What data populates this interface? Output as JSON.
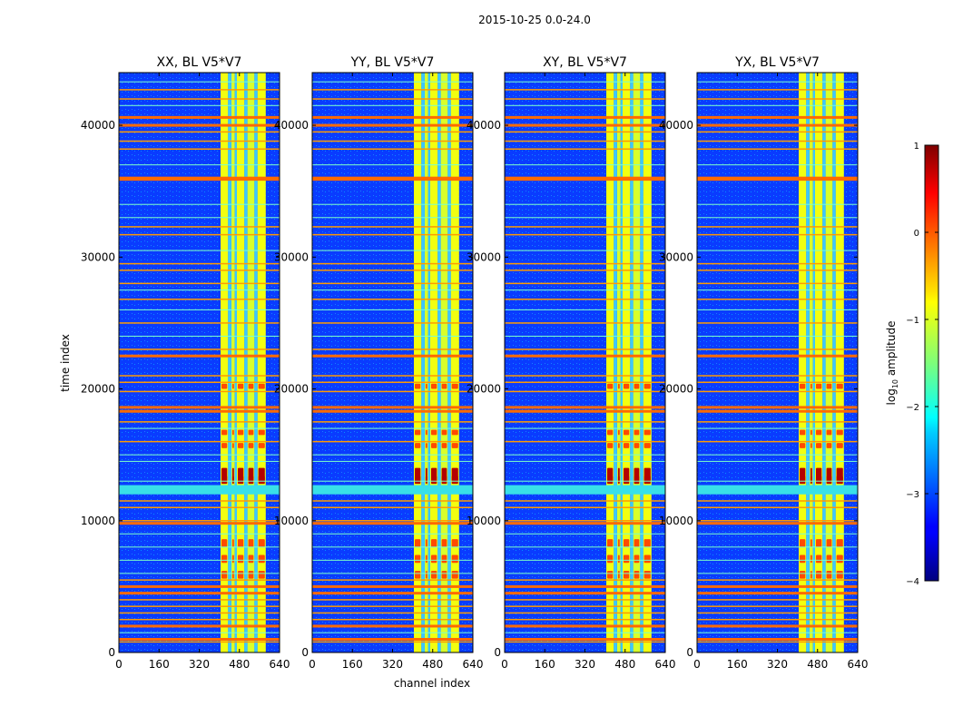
{
  "chart_data": {
    "type": "heatmap",
    "title": "2015-10-25 0.0-24.0",
    "xlabel": "channel index",
    "ylabel": "time index",
    "xlim": [
      0,
      640
    ],
    "ylim": [
      0,
      44000
    ],
    "xticks": [
      0,
      160,
      320,
      480,
      640
    ],
    "yticks": [
      0,
      10000,
      20000,
      30000,
      40000
    ],
    "panels": [
      {
        "title": "XX, BL V5*V7"
      },
      {
        "title": "YY, BL V5*V7"
      },
      {
        "title": "XY, BL V5*V7"
      },
      {
        "title": "YX, BL V5*V7"
      }
    ],
    "colorbar": {
      "label": "log",
      "label_sub": "10",
      "label_rest": " amplitude",
      "range": [
        -4,
        1
      ],
      "ticks": [
        1,
        0,
        -1,
        -2,
        -3,
        -4
      ],
      "tick_labels": [
        "1",
        "0",
        "−1",
        "−2",
        "−3",
        "−4"
      ],
      "colormap": "jet"
    },
    "features": {
      "signal_bands_channels": [
        [
          405,
          435
        ],
        [
          448,
          462
        ],
        [
          470,
          500
        ],
        [
          512,
          540
        ],
        [
          552,
          585
        ]
      ],
      "rfi_rows_strong": [
        1000,
        2000,
        4500,
        5000,
        9800,
        12200,
        12500,
        18300,
        18600,
        22500,
        35900,
        36000,
        40000,
        40600
      ],
      "rfi_rows_medium": [
        800,
        2500,
        3000,
        3500,
        4000,
        5500,
        10000,
        11000,
        11500,
        16000,
        17500,
        19800,
        20500,
        21000,
        23000,
        25000,
        26800,
        28000,
        29000,
        29500,
        31700,
        32300,
        38200,
        38800,
        39500,
        42000,
        42700
      ],
      "rfi_rows_light": [
        1500,
        6000,
        7000,
        8000,
        9000,
        13000,
        14500,
        15000,
        17000,
        24000,
        26000,
        27500,
        30500,
        33000,
        34000,
        37000,
        41500,
        43300
      ],
      "hot_blocks_time": [
        [
          13000,
          14000
        ],
        [
          12800,
          13400
        ],
        [
          8000,
          8600
        ],
        [
          6800,
          7400
        ],
        [
          5600,
          6200
        ],
        [
          15500,
          15900
        ],
        [
          16500,
          16900
        ],
        [
          20000,
          20400
        ]
      ]
    }
  }
}
